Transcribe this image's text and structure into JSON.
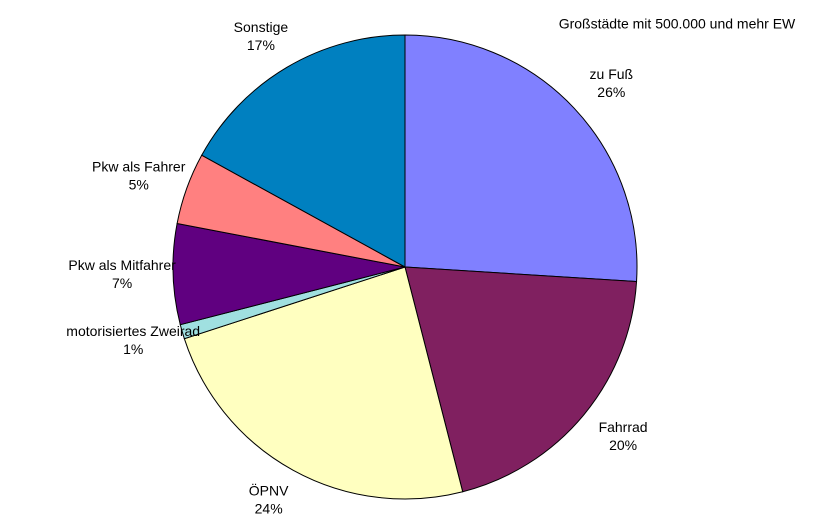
{
  "chart_data": {
    "type": "pie",
    "title": "Großstädte mit 500.000 und mehr EW",
    "categories": [
      "zu Fuß",
      "Fahrrad",
      "ÖPNV",
      "motorisiertes Zweirad",
      "Pkw als Mitfahrer",
      "Pkw als Fahrer",
      "Sonstige"
    ],
    "values": [
      26,
      20,
      24,
      1,
      7,
      5,
      17
    ],
    "value_labels": [
      "26%",
      "20%",
      "24%",
      "1%",
      "7%",
      "5%",
      "17%"
    ],
    "colors": [
      "#8080ff",
      "#802060",
      "#ffffc0",
      "#a0e0e0",
      "#600080",
      "#ff8080",
      "#0080c0"
    ]
  }
}
